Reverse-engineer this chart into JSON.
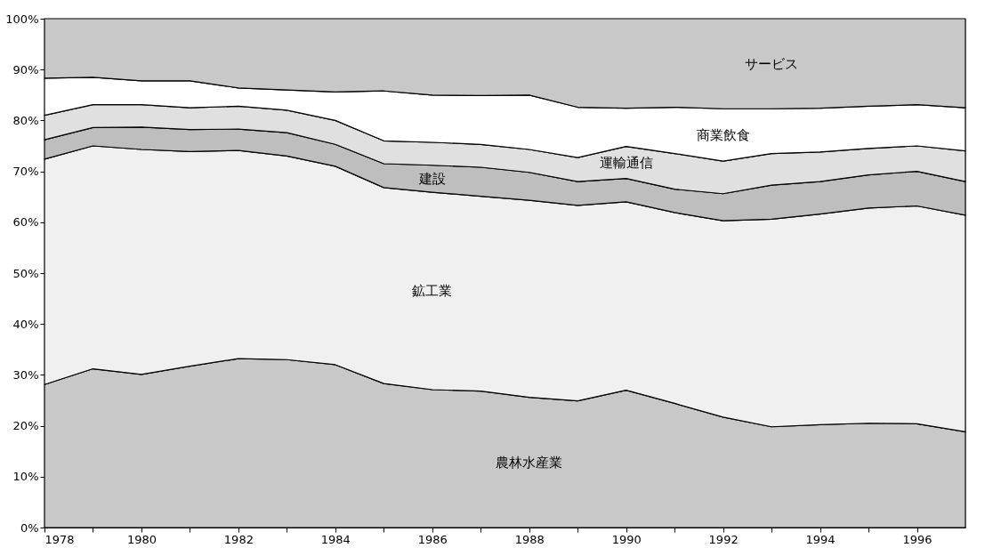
{
  "chart_data": {
    "type": "area",
    "stacked": true,
    "x": [
      1978,
      1979,
      1980,
      1981,
      1982,
      1983,
      1984,
      1985,
      1986,
      1987,
      1988,
      1989,
      1990,
      1991,
      1992,
      1993,
      1994,
      1995,
      1996,
      1997
    ],
    "series": [
      {
        "name": "農林水産業",
        "color": "#c8c8c8",
        "values": [
          28.1,
          31.2,
          30.1,
          31.7,
          33.2,
          33.0,
          32.0,
          28.3,
          27.1,
          26.8,
          25.6,
          24.9,
          27.0,
          24.4,
          21.7,
          19.8,
          20.2,
          20.5,
          20.4,
          18.8
        ]
      },
      {
        "name": "鉱工業",
        "color": "#f0f0f0",
        "values": [
          44.3,
          43.8,
          44.2,
          42.2,
          40.9,
          40.0,
          39.0,
          38.5,
          38.8,
          38.3,
          38.7,
          38.4,
          37.0,
          37.5,
          38.6,
          40.8,
          41.4,
          42.3,
          42.8,
          42.6
        ]
      },
      {
        "name": "建設",
        "color": "#bebebe",
        "values": [
          3.8,
          3.6,
          4.4,
          4.3,
          4.2,
          4.6,
          4.3,
          4.7,
          5.3,
          5.7,
          5.5,
          4.7,
          4.6,
          4.6,
          5.3,
          6.7,
          6.4,
          6.5,
          6.8,
          6.6
        ]
      },
      {
        "name": "運輸通信",
        "color": "#e0e0e0",
        "values": [
          4.8,
          4.5,
          4.4,
          4.3,
          4.5,
          4.4,
          4.7,
          4.5,
          4.5,
          4.5,
          4.5,
          4.7,
          6.3,
          7.0,
          6.4,
          6.2,
          5.8,
          5.2,
          5.0,
          6.0
        ]
      },
      {
        "name": "商業飲食",
        "color": "#ffffff",
        "values": [
          7.3,
          5.4,
          4.7,
          5.3,
          3.6,
          4.0,
          5.6,
          9.8,
          9.3,
          9.6,
          10.7,
          9.9,
          7.5,
          9.1,
          10.3,
          8.8,
          8.6,
          8.3,
          8.1,
          8.5
        ]
      },
      {
        "name": "サービス",
        "color": "#c8c8c8",
        "values": [
          11.7,
          11.5,
          12.2,
          12.2,
          13.6,
          14.0,
          14.4,
          14.2,
          15.0,
          15.1,
          15.0,
          17.4,
          17.6,
          17.4,
          17.7,
          17.7,
          17.6,
          17.2,
          16.9,
          17.5
        ]
      }
    ],
    "xlim": [
      1978,
      1997
    ],
    "xticks": [
      1978,
      {
        "value": 1979,
        "label": null
      },
      1980,
      {
        "value": 1981,
        "label": null
      },
      1982,
      {
        "value": 1983,
        "label": null
      },
      1984,
      {
        "value": 1985,
        "label": null
      },
      1986,
      {
        "value": 1987,
        "label": null
      },
      1988,
      {
        "value": 1989,
        "label": null
      },
      1990,
      {
        "value": 1991,
        "label": null
      },
      1992,
      {
        "value": 1993,
        "label": null
      },
      1994,
      {
        "value": 1995,
        "label": null
      },
      1996
    ],
    "ylim": [
      0,
      100
    ],
    "yticks": [
      {
        "value": 0,
        "label": "0%"
      },
      {
        "value": 10,
        "label": "10%"
      },
      {
        "value": 20,
        "label": "20%"
      },
      {
        "value": 30,
        "label": "30%"
      },
      {
        "value": 40,
        "label": "40%"
      },
      {
        "value": 50,
        "label": "50%"
      },
      {
        "value": 60,
        "label": "60%"
      },
      {
        "value": 70,
        "label": "70%"
      },
      {
        "value": 80,
        "label": "80%"
      },
      {
        "value": 90,
        "label": "90%"
      },
      {
        "value": 100,
        "label": "100%"
      }
    ],
    "legend": false
  }
}
